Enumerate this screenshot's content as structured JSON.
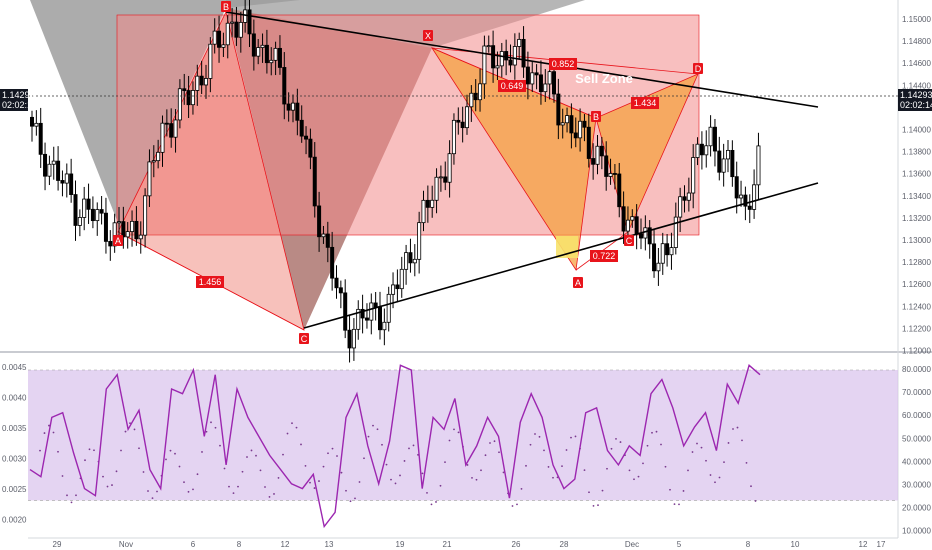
{
  "chart_data": [
    {
      "type": "candlestick",
      "title": "",
      "y_ticks": [
        "1.15000",
        "1.14800",
        "1.14600",
        "1.14400",
        "1.14200",
        "1.14000",
        "1.13800",
        "1.13600",
        "1.13400",
        "1.13200",
        "1.13000",
        "1.12800",
        "1.12600",
        "1.12400",
        "1.12200",
        "1.12000"
      ],
      "x_ticks": [
        "29",
        "Nov",
        "6",
        "8",
        "12",
        "13",
        "19",
        "21",
        "26",
        "28",
        "Dec",
        "5",
        "8",
        "10",
        "12",
        "17"
      ],
      "ylim": [
        1.1198,
        1.1517
      ],
      "current_price": "1.14293",
      "countdown": "02:02:14",
      "colors": {
        "up": "#ffffff",
        "down": "#000000",
        "wick": "#000000",
        "harmonic_red": "#ff4d4d",
        "harmonic_orange": "#f5a142",
        "label_bg": "#e8141b"
      },
      "pattern_points": [
        "A",
        "B",
        "C",
        "X",
        "A",
        "B",
        "C",
        "D"
      ],
      "ratio_labels": [
        "1.456",
        "0.852",
        "0.649",
        "1.434",
        "0.722"
      ],
      "annotation": "Sell Zone",
      "series": [
        {
          "name": "price_path",
          "x": [
            0,
            10,
            20,
            24,
            30,
            36,
            46,
            55,
            62,
            66,
            72,
            82,
            88,
            94,
            100,
            104,
            110,
            118,
            124,
            130,
            138,
            146,
            150,
            156,
            164,
            172
          ],
          "y": [
            1.1395,
            1.1332,
            1.1305,
            1.1308,
            1.14,
            1.143,
            1.15,
            1.1465,
            1.14,
            1.132,
            1.122,
            1.124,
            1.13,
            1.136,
            1.142,
            1.146,
            1.147,
            1.144,
            1.14,
            1.138,
            1.131,
            1.128,
            1.135,
            1.1395,
            1.133,
            1.1429
          ]
        }
      ],
      "trendlines": {
        "upper": [
          [
            0,
            1.1505
          ],
          [
            172,
            1.1425
          ]
        ],
        "lower": [
          [
            72,
            1.1218
          ],
          [
            172,
            1.1352
          ]
        ]
      }
    },
    {
      "type": "line",
      "title": "",
      "y_ticks": [
        "0.0045",
        "0.0040",
        "0.0035",
        "0.0030",
        "0.0025",
        "0.0020"
      ],
      "y_ticks_right": [
        "80.0000",
        "70.0000",
        "60.0000",
        "50.0000",
        "40.0000",
        "30.0000",
        "20.0000",
        "10.0000"
      ],
      "band": [
        25,
        80
      ],
      "series": [
        {
          "name": "rsi",
          "color": "#9c27b0",
          "values": [
            38,
            35,
            60,
            62,
            45,
            30,
            27,
            72,
            78,
            55,
            63,
            38,
            30,
            72,
            70,
            80,
            52,
            78,
            40,
            72,
            60,
            52,
            44,
            38,
            32,
            30,
            36,
            14,
            20,
            60,
            70,
            48,
            32,
            50,
            82,
            80,
            30,
            60,
            55,
            68,
            40,
            48,
            60,
            52,
            26,
            58,
            70,
            60,
            40,
            30,
            34,
            62,
            64,
            46,
            40,
            48,
            44,
            70,
            76,
            64,
            48,
            56,
            62,
            46,
            74,
            66,
            82,
            78
          ]
        }
      ]
    }
  ]
}
